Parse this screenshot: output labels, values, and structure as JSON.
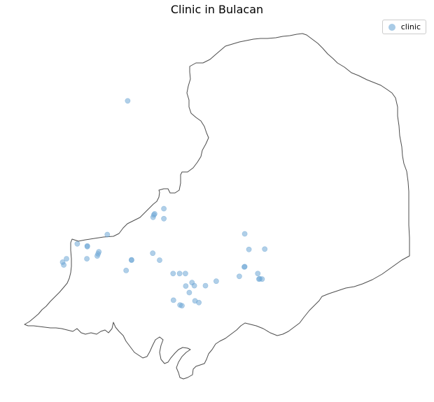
{
  "title": "Clinic in Bulacan",
  "legend": {
    "label": "clinic"
  },
  "colors": {
    "marker": "#6fa8d6",
    "boundary": "#4d4d4d"
  },
  "boundary_outline": [
    [
      35,
      464
    ],
    [
      42,
      460
    ],
    [
      48,
      455
    ],
    [
      55,
      449
    ],
    [
      60,
      443
    ],
    [
      66,
      438
    ],
    [
      72,
      431
    ],
    [
      78,
      425
    ],
    [
      85,
      418
    ],
    [
      91,
      411
    ],
    [
      96,
      405
    ],
    [
      99,
      398
    ],
    [
      101,
      390
    ],
    [
      102,
      381
    ],
    [
      102,
      370
    ],
    [
      101,
      358
    ],
    [
      101,
      347
    ],
    [
      103,
      342
    ],
    [
      112,
      345
    ],
    [
      122,
      343
    ],
    [
      135,
      341
    ],
    [
      148,
      339
    ],
    [
      162,
      338
    ],
    [
      170,
      334
    ],
    [
      176,
      326
    ],
    [
      182,
      320
    ],
    [
      190,
      316
    ],
    [
      200,
      311
    ],
    [
      208,
      303
    ],
    [
      214,
      297
    ],
    [
      219,
      292
    ],
    [
      224,
      288
    ],
    [
      227,
      282
    ],
    [
      228,
      275
    ],
    [
      227,
      272
    ],
    [
      234,
      270
    ],
    [
      240,
      270
    ],
    [
      243,
      276
    ],
    [
      250,
      276
    ],
    [
      256,
      272
    ],
    [
      258,
      262
    ],
    [
      258,
      250
    ],
    [
      260,
      246
    ],
    [
      268,
      246
    ],
    [
      276,
      240
    ],
    [
      282,
      232
    ],
    [
      287,
      224
    ],
    [
      289,
      215
    ],
    [
      294,
      206
    ],
    [
      298,
      197
    ],
    [
      295,
      190
    ],
    [
      292,
      181
    ],
    [
      287,
      173
    ],
    [
      280,
      168
    ],
    [
      273,
      162
    ],
    [
      270,
      153
    ],
    [
      270,
      143
    ],
    [
      267,
      133
    ],
    [
      269,
      123
    ],
    [
      272,
      113
    ],
    [
      271,
      103
    ],
    [
      271,
      95
    ],
    [
      280,
      90
    ],
    [
      290,
      90
    ],
    [
      300,
      85
    ],
    [
      308,
      78
    ],
    [
      315,
      72
    ],
    [
      322,
      66
    ],
    [
      332,
      63
    ],
    [
      342,
      60
    ],
    [
      352,
      58
    ],
    [
      362,
      56
    ],
    [
      372,
      55
    ],
    [
      382,
      55
    ],
    [
      394,
      54
    ],
    [
      404,
      52
    ],
    [
      414,
      51
    ],
    [
      424,
      49
    ],
    [
      432,
      48
    ],
    [
      438,
      50
    ],
    [
      446,
      56
    ],
    [
      454,
      62
    ],
    [
      461,
      69
    ],
    [
      468,
      77
    ],
    [
      476,
      84
    ],
    [
      482,
      90
    ],
    [
      492,
      96
    ],
    [
      502,
      104
    ],
    [
      512,
      108
    ],
    [
      524,
      114
    ],
    [
      534,
      118
    ],
    [
      544,
      122
    ],
    [
      553,
      128
    ],
    [
      560,
      133
    ],
    [
      565,
      140
    ],
    [
      568,
      153
    ],
    [
      568,
      166
    ],
    [
      570,
      180
    ],
    [
      571,
      194
    ],
    [
      574,
      210
    ],
    [
      575,
      223
    ],
    [
      577,
      234
    ],
    [
      581,
      245
    ],
    [
      583,
      260
    ],
    [
      584,
      274
    ],
    [
      584,
      290
    ],
    [
      584,
      305
    ],
    [
      584,
      322
    ],
    [
      585,
      340
    ],
    [
      585,
      355
    ],
    [
      585,
      366
    ],
    [
      574,
      372
    ],
    [
      560,
      382
    ],
    [
      546,
      392
    ],
    [
      532,
      400
    ],
    [
      518,
      406
    ],
    [
      506,
      410
    ],
    [
      494,
      412
    ],
    [
      482,
      416
    ],
    [
      470,
      420
    ],
    [
      460,
      424
    ],
    [
      456,
      430
    ],
    [
      450,
      436
    ],
    [
      442,
      444
    ],
    [
      434,
      454
    ],
    [
      428,
      462
    ],
    [
      420,
      468
    ],
    [
      412,
      474
    ],
    [
      404,
      478
    ],
    [
      396,
      480
    ],
    [
      386,
      476
    ],
    [
      376,
      470
    ],
    [
      366,
      466
    ],
    [
      358,
      464
    ],
    [
      350,
      462
    ],
    [
      344,
      466
    ],
    [
      338,
      472
    ],
    [
      330,
      478
    ],
    [
      322,
      484
    ],
    [
      314,
      488
    ],
    [
      308,
      492
    ],
    [
      303,
      500
    ],
    [
      298,
      506
    ],
    [
      295,
      514
    ],
    [
      292,
      520
    ],
    [
      286,
      522
    ],
    [
      280,
      524
    ],
    [
      276,
      528
    ],
    [
      275,
      536
    ],
    [
      268,
      540
    ],
    [
      262,
      542
    ],
    [
      257,
      540
    ],
    [
      255,
      533
    ],
    [
      252,
      526
    ],
    [
      255,
      518
    ],
    [
      260,
      510
    ],
    [
      266,
      504
    ],
    [
      272,
      500
    ],
    [
      268,
      498
    ],
    [
      261,
      497
    ],
    [
      255,
      500
    ],
    [
      250,
      505
    ],
    [
      244,
      512
    ],
    [
      240,
      518
    ],
    [
      235,
      520
    ],
    [
      230,
      514
    ],
    [
      228,
      504
    ],
    [
      230,
      494
    ],
    [
      233,
      486
    ],
    [
      228,
      482
    ],
    [
      222,
      486
    ],
    [
      218,
      494
    ],
    [
      214,
      503
    ],
    [
      210,
      510
    ],
    [
      204,
      512
    ],
    [
      198,
      508
    ],
    [
      192,
      504
    ],
    [
      186,
      496
    ],
    [
      180,
      488
    ],
    [
      176,
      480
    ],
    [
      170,
      474
    ],
    [
      165,
      468
    ],
    [
      162,
      461
    ],
    [
      160,
      470
    ],
    [
      155,
      476
    ],
    [
      150,
      472
    ],
    [
      144,
      474
    ],
    [
      138,
      478
    ],
    [
      130,
      476
    ],
    [
      122,
      478
    ],
    [
      116,
      476
    ],
    [
      110,
      470
    ],
    [
      104,
      474
    ],
    [
      96,
      472
    ],
    [
      88,
      470
    ],
    [
      80,
      469
    ],
    [
      72,
      469
    ],
    [
      64,
      468
    ],
    [
      56,
      467
    ],
    [
      48,
      466
    ],
    [
      40,
      466
    ],
    [
      35,
      464
    ]
  ],
  "clinics": [
    {
      "lon": 0.268,
      "lat": 0.805
    },
    {
      "lon": 0.362,
      "lat": 0.493
    },
    {
      "lon": 0.338,
      "lat": 0.478
    },
    {
      "lon": 0.336,
      "lat": 0.475
    },
    {
      "lon": 0.334,
      "lat": 0.468
    },
    {
      "lon": 0.362,
      "lat": 0.464
    },
    {
      "lon": 0.215,
      "lat": 0.418
    },
    {
      "lon": 0.137,
      "lat": 0.391
    },
    {
      "lon": 0.163,
      "lat": 0.385
    },
    {
      "lon": 0.163,
      "lat": 0.383
    },
    {
      "lon": 0.193,
      "lat": 0.368
    },
    {
      "lon": 0.191,
      "lat": 0.362
    },
    {
      "lon": 0.189,
      "lat": 0.356
    },
    {
      "lon": 0.333,
      "lat": 0.364
    },
    {
      "lon": 0.162,
      "lat": 0.348
    },
    {
      "lon": 0.109,
      "lat": 0.348
    },
    {
      "lon": 0.099,
      "lat": 0.338
    },
    {
      "lon": 0.102,
      "lat": 0.33
    },
    {
      "lon": 0.278,
      "lat": 0.345
    },
    {
      "lon": 0.278,
      "lat": 0.344
    },
    {
      "lon": 0.351,
      "lat": 0.344
    },
    {
      "lon": 0.264,
      "lat": 0.314
    },
    {
      "lon": 0.572,
      "lat": 0.42
    },
    {
      "lon": 0.583,
      "lat": 0.375
    },
    {
      "lon": 0.624,
      "lat": 0.376
    },
    {
      "lon": 0.572,
      "lat": 0.325
    },
    {
      "lon": 0.571,
      "lat": 0.324
    },
    {
      "lon": 0.606,
      "lat": 0.305
    },
    {
      "lon": 0.558,
      "lat": 0.297
    },
    {
      "lon": 0.611,
      "lat": 0.29
    },
    {
      "lon": 0.617,
      "lat": 0.289
    },
    {
      "lon": 0.609,
      "lat": 0.289
    },
    {
      "lon": 0.386,
      "lat": 0.305
    },
    {
      "lon": 0.403,
      "lat": 0.305
    },
    {
      "lon": 0.418,
      "lat": 0.305
    },
    {
      "lon": 0.435,
      "lat": 0.279
    },
    {
      "lon": 0.498,
      "lat": 0.283
    },
    {
      "lon": 0.441,
      "lat": 0.27
    },
    {
      "lon": 0.419,
      "lat": 0.269
    },
    {
      "lon": 0.47,
      "lat": 0.27
    },
    {
      "lon": 0.428,
      "lat": 0.25
    },
    {
      "lon": 0.387,
      "lat": 0.228
    },
    {
      "lon": 0.443,
      "lat": 0.226
    },
    {
      "lon": 0.453,
      "lat": 0.221
    },
    {
      "lon": 0.404,
      "lat": 0.214
    },
    {
      "lon": 0.409,
      "lat": 0.212
    }
  ]
}
